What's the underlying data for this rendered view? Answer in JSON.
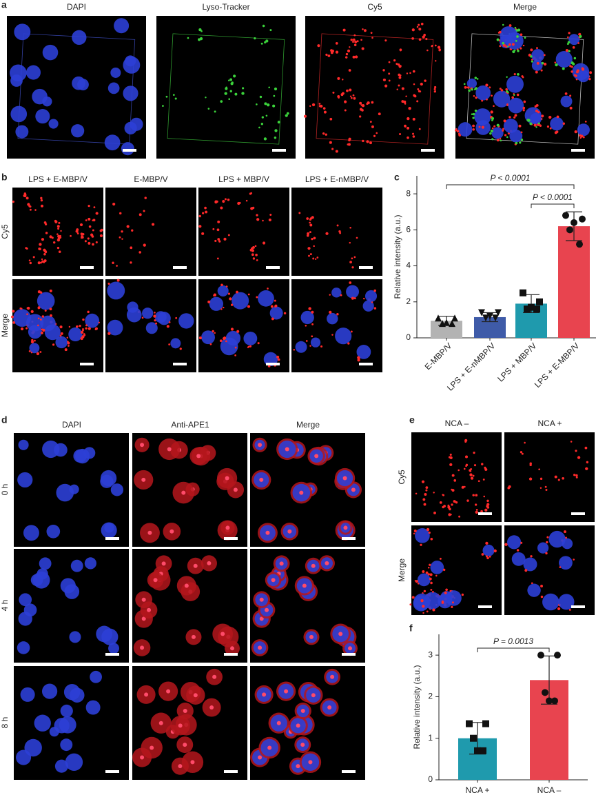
{
  "panel_labels": [
    "a",
    "b",
    "c",
    "d",
    "e",
    "f"
  ],
  "panel_a": {
    "columns": [
      "DAPI",
      "Lyso-Tracker",
      "Cy5",
      "Merge"
    ]
  },
  "panel_b": {
    "columns": [
      "LPS + E-MBP/V",
      "E-MBP/V",
      "LPS + MBP/V",
      "LPS + E-nMBP/V"
    ],
    "rows": [
      "Cy5",
      "Merge"
    ]
  },
  "panel_d": {
    "columns": [
      "DAPI",
      "Anti-APE1",
      "Merge"
    ],
    "rows": [
      "0 h",
      "4 h",
      "8 h"
    ]
  },
  "panel_e": {
    "columns": [
      "NCA –",
      "NCA +"
    ],
    "rows": [
      "Cy5",
      "Merge"
    ]
  },
  "chart_data": [
    {
      "type": "bar",
      "ylabel": "Relative intensity (a.u.)",
      "categories": [
        "E-MBP/V",
        "LPS + E-nMBP/V",
        "LPS + MBP/V",
        "LPS + E-MBP/V"
      ],
      "values": [
        0.95,
        1.15,
        1.9,
        6.2
      ],
      "errors": [
        0.25,
        0.25,
        0.5,
        0.8
      ],
      "points": [
        [
          1.1,
          1.1,
          0.8,
          0.8,
          0.85
        ],
        [
          1.4,
          1.4,
          1.1,
          1.1,
          1.2
        ],
        [
          2.5,
          2.0,
          1.6,
          1.6,
          1.7
        ],
        [
          6.8,
          6.6,
          6.0,
          5.2,
          6.4
        ]
      ],
      "colors": [
        "#b3b3b3",
        "#3f5ba8",
        "#1f9aad",
        "#e8444f"
      ],
      "markers": [
        "triangle",
        "triangle-down",
        "square",
        "circle"
      ],
      "ylim": [
        0,
        9
      ],
      "yticks": [
        0,
        2,
        4,
        6,
        8
      ],
      "annotations": [
        {
          "text": "P < 0.0001",
          "between": [
            0,
            3
          ]
        },
        {
          "text": "P < 0.0001",
          "between": [
            2,
            3
          ]
        }
      ]
    },
    {
      "type": "bar",
      "ylabel": "Relative intensity (a.u.)",
      "categories": [
        "NCA +",
        "NCA –"
      ],
      "values": [
        1.0,
        2.4
      ],
      "errors": [
        0.38,
        0.58
      ],
      "points": [
        [
          1.35,
          1.35,
          1.0,
          0.7,
          0.7
        ],
        [
          3.0,
          3.0,
          2.1,
          1.9,
          1.9
        ]
      ],
      "colors": [
        "#1f9aad",
        "#e8444f"
      ],
      "markers": [
        "square",
        "circle"
      ],
      "ylim": [
        0,
        3.5
      ],
      "yticks": [
        0,
        1,
        2,
        3
      ],
      "annotations": [
        {
          "text": "P = 0.0013",
          "between": [
            0,
            1
          ]
        }
      ]
    }
  ]
}
